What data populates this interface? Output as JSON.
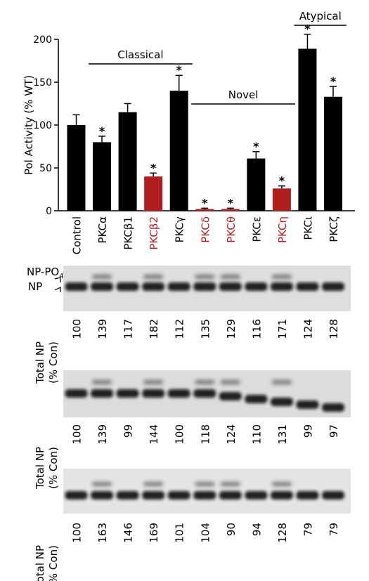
{
  "colors": {
    "default_bar": "#000000",
    "highlight": "#b01e1e",
    "text": "#000000"
  },
  "chart_data": {
    "type": "bar",
    "ylabel": "Pol Activity (% WT)",
    "ylim": [
      0,
      200
    ],
    "yticks": [
      "0",
      "50",
      "100",
      "150",
      "200"
    ],
    "categories": [
      "Control",
      "PKCα",
      "PKCβ1",
      "PKCβ2",
      "PKCγ",
      "PKCδ",
      "PKCθ",
      "PKCε",
      "PKCη",
      "PKCι",
      "PKCζ"
    ],
    "values": [
      100,
      80,
      115,
      40,
      140,
      2,
      2,
      61,
      26,
      189,
      133
    ],
    "errors": [
      12,
      7,
      10,
      4,
      18,
      1,
      1,
      8,
      3,
      17,
      12
    ],
    "significant": [
      false,
      true,
      false,
      true,
      true,
      true,
      true,
      true,
      true,
      true,
      true
    ],
    "highlighted": [
      false,
      false,
      false,
      true,
      false,
      true,
      true,
      false,
      true,
      false,
      false
    ],
    "significance_marker": "*",
    "groups": [
      {
        "label": "Classical",
        "start": 1,
        "end": 4
      },
      {
        "label": "Novel",
        "start": 5,
        "end": 8
      },
      {
        "label": "Atypical",
        "start": 9,
        "end": 10
      }
    ]
  },
  "blot": {
    "band_labels": {
      "np_po4_main": "NP-PO",
      "np_po4_sub": "4",
      "np": "NP"
    },
    "row_label_line1": "Total NP",
    "row_label_line2": "(% Con)",
    "panels": [
      {
        "values": [
          "100",
          "139",
          "117",
          "182",
          "112",
          "135",
          "129",
          "116",
          "171",
          "124",
          "128"
        ]
      },
      {
        "values": [
          "100",
          "139",
          "99",
          "144",
          "100",
          "118",
          "124",
          "110",
          "131",
          "99",
          "97"
        ]
      },
      {
        "values": [
          "100",
          "163",
          "146",
          "169",
          "101",
          "104",
          "90",
          "94",
          "128",
          "79",
          "79"
        ]
      }
    ]
  }
}
